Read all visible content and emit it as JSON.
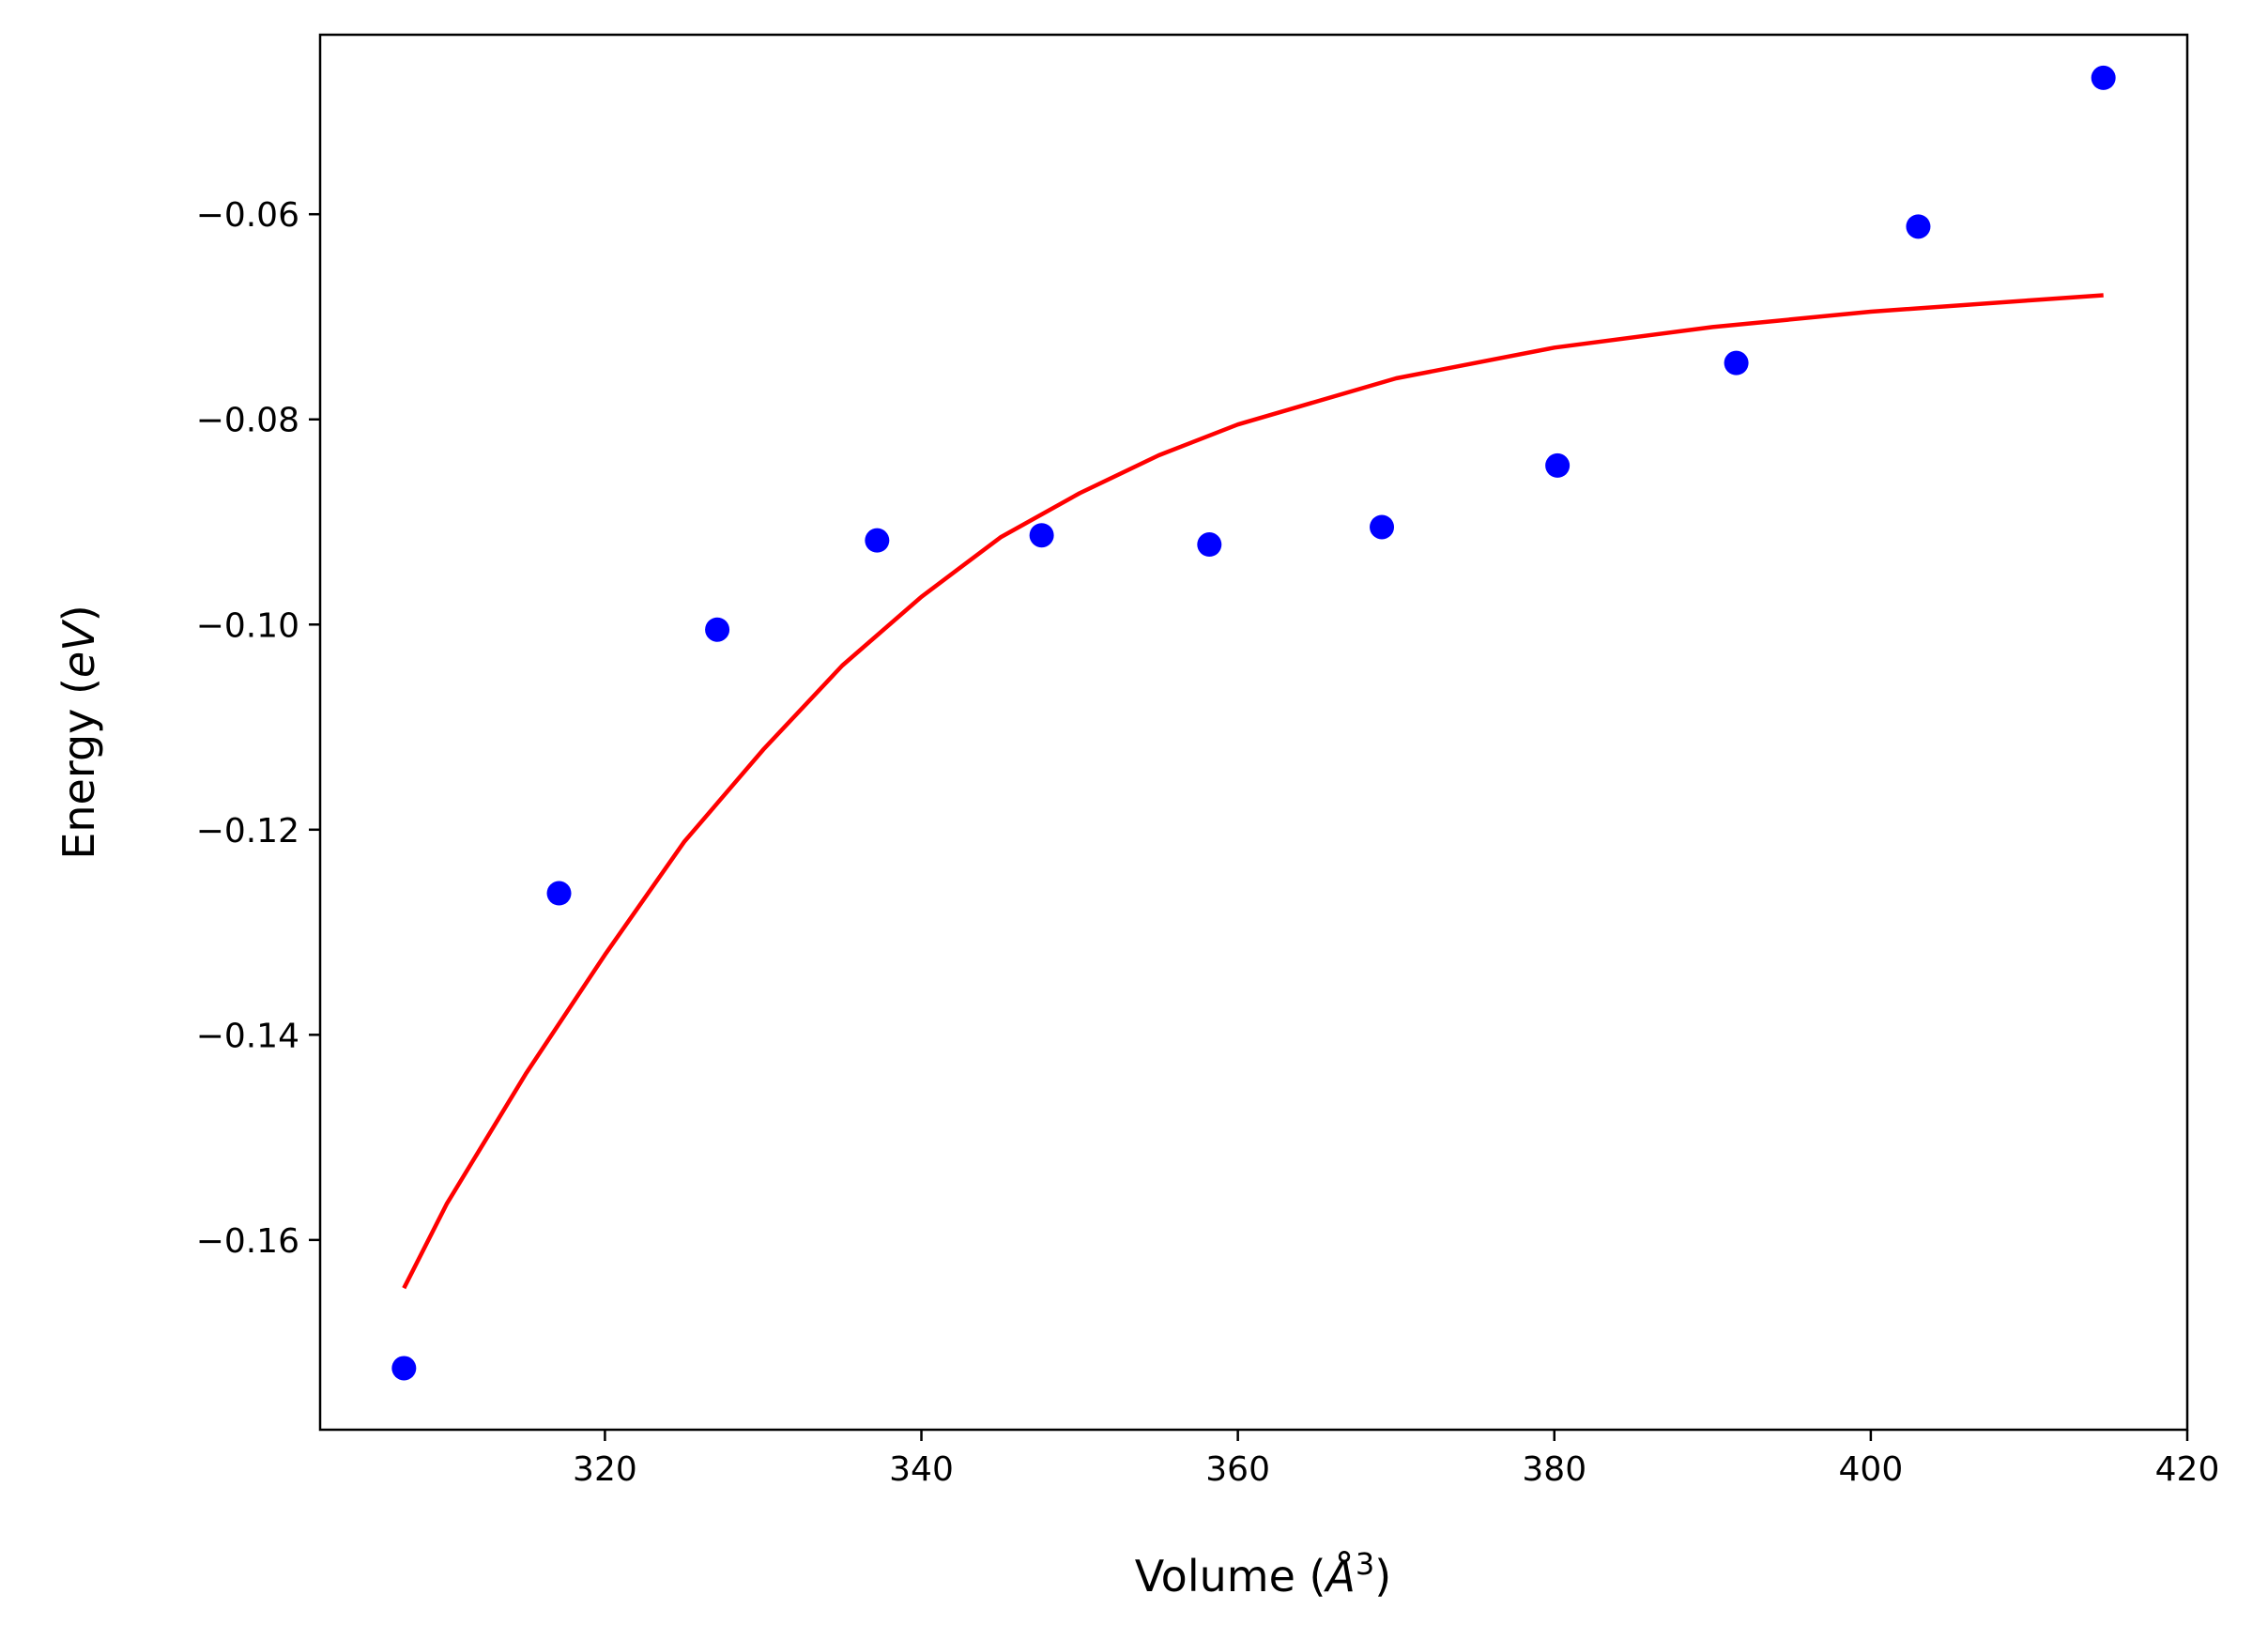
{
  "chart_data": {
    "type": "scatter",
    "xlabel": {
      "prefix": "Volume (",
      "italic": "Å",
      "superscript": "3",
      "suffix": ")"
    },
    "ylabel": {
      "prefix": "Energy (",
      "italic": "eV",
      "suffix": ")"
    },
    "xlim": [
      302,
      420
    ],
    "ylim": [
      -0.1785,
      -0.0425
    ],
    "xticks": [
      320,
      340,
      360,
      380,
      400,
      420
    ],
    "yticks": [
      -0.16,
      -0.14,
      -0.12,
      -0.1,
      -0.08,
      -0.06
    ],
    "xtick_labels": [
      "320",
      "340",
      "360",
      "380",
      "400",
      "420"
    ],
    "ytick_labels": [
      "−0.16",
      "−0.14",
      "−0.12",
      "−0.10",
      "−0.08",
      "−0.06"
    ],
    "grid": false,
    "series": [
      {
        "kind": "points",
        "color": "#0000ff",
        "x": [
          307.3,
          317.1,
          327.1,
          337.2,
          347.6,
          358.2,
          369.1,
          380.2,
          391.5,
          403.0,
          414.7
        ],
        "y": [
          -0.1725,
          -0.1262,
          -0.1005,
          -0.0918,
          -0.0913,
          -0.0922,
          -0.0905,
          -0.0845,
          -0.0745,
          -0.0612,
          -0.0467
        ]
      },
      {
        "kind": "line",
        "color": "#ff0000",
        "x": [
          307.3,
          310,
          315,
          320,
          325,
          330,
          335,
          340,
          345,
          350,
          355,
          360,
          370,
          380,
          390,
          400,
          410,
          414.7
        ],
        "y": [
          -0.1647,
          -0.1565,
          -0.1438,
          -0.1322,
          -0.1212,
          -0.1122,
          -0.104,
          -0.0973,
          -0.0915,
          -0.0872,
          -0.0835,
          -0.0805,
          -0.076,
          -0.073,
          -0.071,
          -0.0695,
          -0.0684,
          -0.0679
        ]
      }
    ]
  }
}
